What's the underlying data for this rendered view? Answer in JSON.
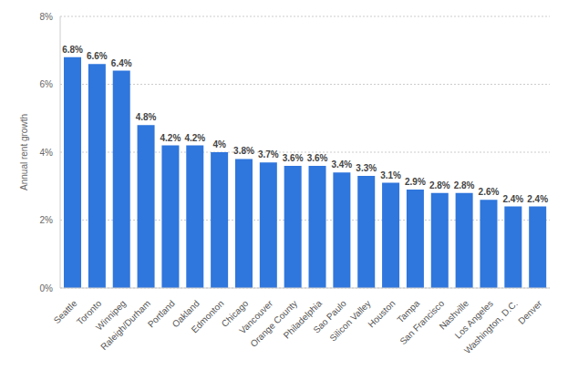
{
  "chart_data": {
    "type": "bar",
    "y_label": "Annual rent growth",
    "categories": [
      "Seattle",
      "Toronto",
      "Winnipeg",
      "Raleigh/Durham",
      "Portland",
      "Oakland",
      "Edmonton",
      "Chicago",
      "Vancouver",
      "Orange County",
      "Philadelphia",
      "Sao Paulo",
      "Silicon Valley",
      "Houston",
      "Tampa",
      "San Francisco",
      "Nashville",
      "Los Angeles",
      "Washington, D.C.",
      "Denver"
    ],
    "values": [
      6.8,
      6.6,
      6.4,
      4.8,
      4.2,
      4.2,
      4,
      3.8,
      3.7,
      3.6,
      3.6,
      3.4,
      3.3,
      3.1,
      2.9,
      2.8,
      2.8,
      2.6,
      2.4,
      2.4
    ],
    "value_labels": [
      "6.8%",
      "6.6%",
      "6.4%",
      "4.8%",
      "4.2%",
      "4.2%",
      "4%",
      "3.8%",
      "3.7%",
      "3.6%",
      "3.6%",
      "3.4%",
      "3.3%",
      "3.1%",
      "2.9%",
      "2.8%",
      "2.8%",
      "2.6%",
      "2.4%",
      "2.4%"
    ],
    "color": "#2f76dd",
    "ylim": [
      0,
      8
    ],
    "yticks": [
      {
        "value": 0,
        "label": "0%"
      },
      {
        "value": 2,
        "label": "2%"
      },
      {
        "value": 4,
        "label": "4%"
      },
      {
        "value": 6,
        "label": "6%"
      },
      {
        "value": 8,
        "label": "8%"
      }
    ],
    "grid": true,
    "data_labels": true
  }
}
